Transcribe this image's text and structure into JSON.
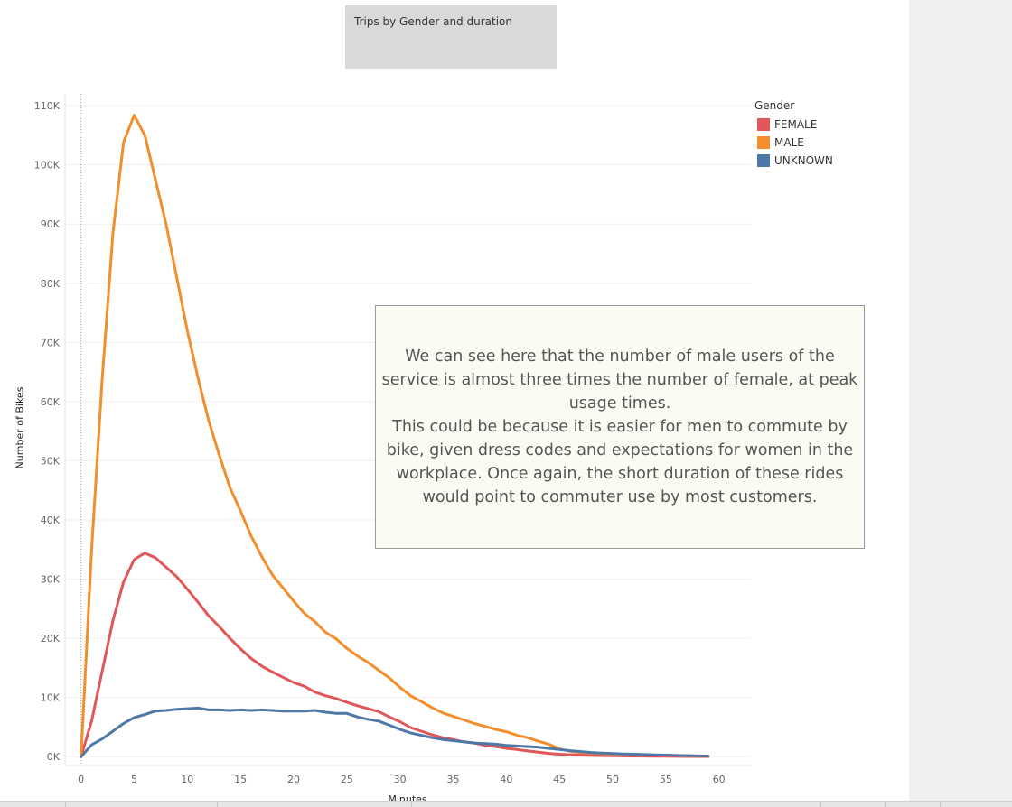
{
  "title": "Trips by Gender and duration",
  "legend": {
    "title": "Gender",
    "items": [
      {
        "label": "FEMALE",
        "color": "#e15759"
      },
      {
        "label": "MALE",
        "color": "#f28e2b"
      },
      {
        "label": "UNKNOWN",
        "color": "#4e79a7"
      }
    ]
  },
  "annotation": {
    "line1": "We can see here that the number of male users of the service is almost three times the number of female, at peak usage times.",
    "line2": "This could be because it is easier for men to commute by bike, given dress codes and expectations for women in the workplace. Once again, the short duration of these rides would point to commuter use by most customers."
  },
  "chart_data": {
    "type": "line",
    "title": "Trips by Gender and duration",
    "xlabel": "Minutes",
    "ylabel": "Number of Bikes",
    "xlim": [
      -1.5,
      63
    ],
    "ylim": [
      -1500,
      112000
    ],
    "x_ticks": [
      0,
      5,
      10,
      15,
      20,
      25,
      30,
      35,
      40,
      45,
      50,
      55,
      60
    ],
    "y_ticks": [
      0,
      10000,
      20000,
      30000,
      40000,
      50000,
      60000,
      70000,
      80000,
      90000,
      100000,
      110000
    ],
    "y_tick_labels": [
      "0K",
      "10K",
      "20K",
      "30K",
      "40K",
      "50K",
      "60K",
      "70K",
      "80K",
      "90K",
      "100K",
      "110K"
    ],
    "grid": true,
    "legend_position": "top-right",
    "x": [
      0,
      1,
      2,
      3,
      4,
      5,
      6,
      7,
      8,
      9,
      10,
      11,
      12,
      13,
      14,
      15,
      16,
      17,
      18,
      19,
      20,
      21,
      22,
      23,
      24,
      25,
      26,
      27,
      28,
      29,
      30,
      31,
      32,
      33,
      34,
      35,
      36,
      37,
      38,
      39,
      40,
      41,
      42,
      43,
      44,
      45,
      46,
      47,
      48,
      49,
      50,
      51,
      52,
      53,
      54,
      55,
      56,
      57,
      58,
      59
    ],
    "series": [
      {
        "name": "FEMALE",
        "color": "#e15759",
        "values": [
          0,
          6000,
          14500,
          23000,
          29500,
          33300,
          34400,
          33600,
          32000,
          30400,
          28300,
          26100,
          23800,
          22000,
          20000,
          18200,
          16600,
          15300,
          14300,
          13400,
          12500,
          11900,
          10900,
          10300,
          9800,
          9200,
          8600,
          8100,
          7600,
          6700,
          5900,
          4900,
          4300,
          3700,
          3200,
          2900,
          2500,
          2300,
          1900,
          1700,
          1400,
          1200,
          950,
          750,
          550,
          400,
          320,
          260,
          210,
          170,
          140,
          120,
          100,
          80,
          60,
          50,
          40,
          30,
          20,
          10
        ]
      },
      {
        "name": "MALE",
        "color": "#f28e2b",
        "values": [
          0,
          35000,
          64000,
          88500,
          103800,
          108400,
          105000,
          97500,
          90000,
          81000,
          72000,
          64000,
          56800,
          51000,
          45500,
          41500,
          37300,
          33800,
          30700,
          28500,
          26300,
          24200,
          22800,
          21000,
          19900,
          18300,
          17000,
          15900,
          14600,
          13300,
          11700,
          10300,
          9300,
          8300,
          7400,
          6800,
          6200,
          5600,
          5100,
          4600,
          4200,
          3600,
          3200,
          2600,
          2100,
          1300,
          900,
          700,
          600,
          550,
          450,
          400,
          350,
          300,
          250,
          220,
          180,
          140,
          100,
          60
        ]
      },
      {
        "name": "UNKNOWN",
        "color": "#4e79a7",
        "values": [
          0,
          2000,
          3000,
          4300,
          5600,
          6600,
          7100,
          7700,
          7800,
          8000,
          8100,
          8200,
          7900,
          7900,
          7800,
          7900,
          7800,
          7900,
          7800,
          7700,
          7700,
          7700,
          7800,
          7500,
          7300,
          7300,
          6700,
          6300,
          6000,
          5300,
          4600,
          4000,
          3600,
          3200,
          2900,
          2700,
          2500,
          2300,
          2200,
          2100,
          1900,
          1800,
          1700,
          1600,
          1400,
          1200,
          1000,
          850,
          700,
          600,
          520,
          460,
          400,
          350,
          300,
          250,
          200,
          160,
          120,
          90
        ]
      }
    ]
  }
}
